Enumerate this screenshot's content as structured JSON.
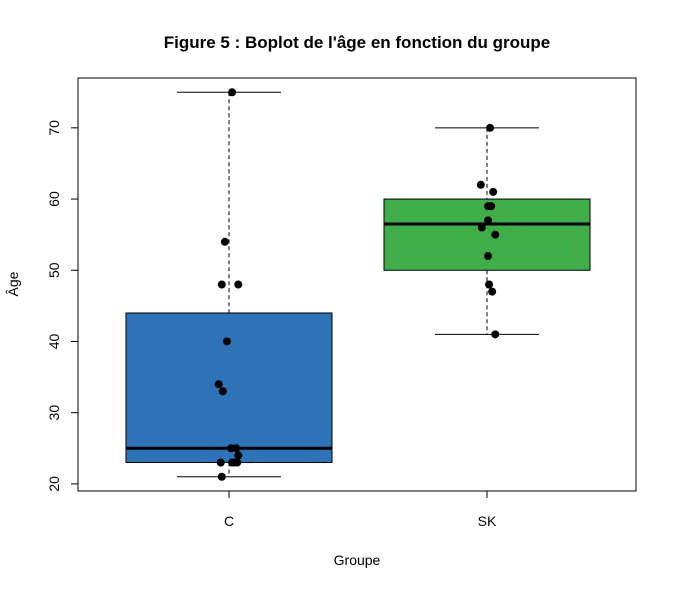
{
  "chart_data": {
    "type": "boxplot",
    "title": "Figure 5 : Boplot de l'âge en fonction du groupe",
    "xlabel": "Groupe",
    "ylabel": "Âge",
    "categories": [
      "C",
      "SK"
    ],
    "ylim": [
      19,
      77
    ],
    "yticks": [
      20,
      30,
      40,
      50,
      60,
      70
    ],
    "grid": false,
    "boxes": [
      {
        "category": "C",
        "min": 21,
        "q1": 23,
        "median": 25,
        "q3": 44,
        "max": 75,
        "color": "#2e72b8"
      },
      {
        "category": "SK",
        "min": 41,
        "q1": 50,
        "median": 56.5,
        "q3": 60,
        "max": 70,
        "color": "#3fae49"
      }
    ],
    "points": [
      {
        "category": "C",
        "values": [
          75,
          54,
          48,
          48,
          40,
          34,
          33,
          25,
          25,
          24,
          23,
          23,
          23,
          23,
          21
        ],
        "jitter": [
          0.03,
          -0.04,
          -0.07,
          0.09,
          -0.02,
          -0.1,
          -0.06,
          0.02,
          0.07,
          0.09,
          -0.08,
          0.03,
          0.08,
          0.05,
          -0.07
        ]
      },
      {
        "category": "SK",
        "values": [
          70,
          62,
          61,
          59,
          59,
          57,
          56,
          55,
          52,
          48,
          47,
          41
        ],
        "jitter": [
          0.03,
          -0.06,
          0.06,
          0.01,
          0.04,
          0.01,
          -0.05,
          0.08,
          0.01,
          0.02,
          0.05,
          0.08
        ]
      }
    ]
  }
}
